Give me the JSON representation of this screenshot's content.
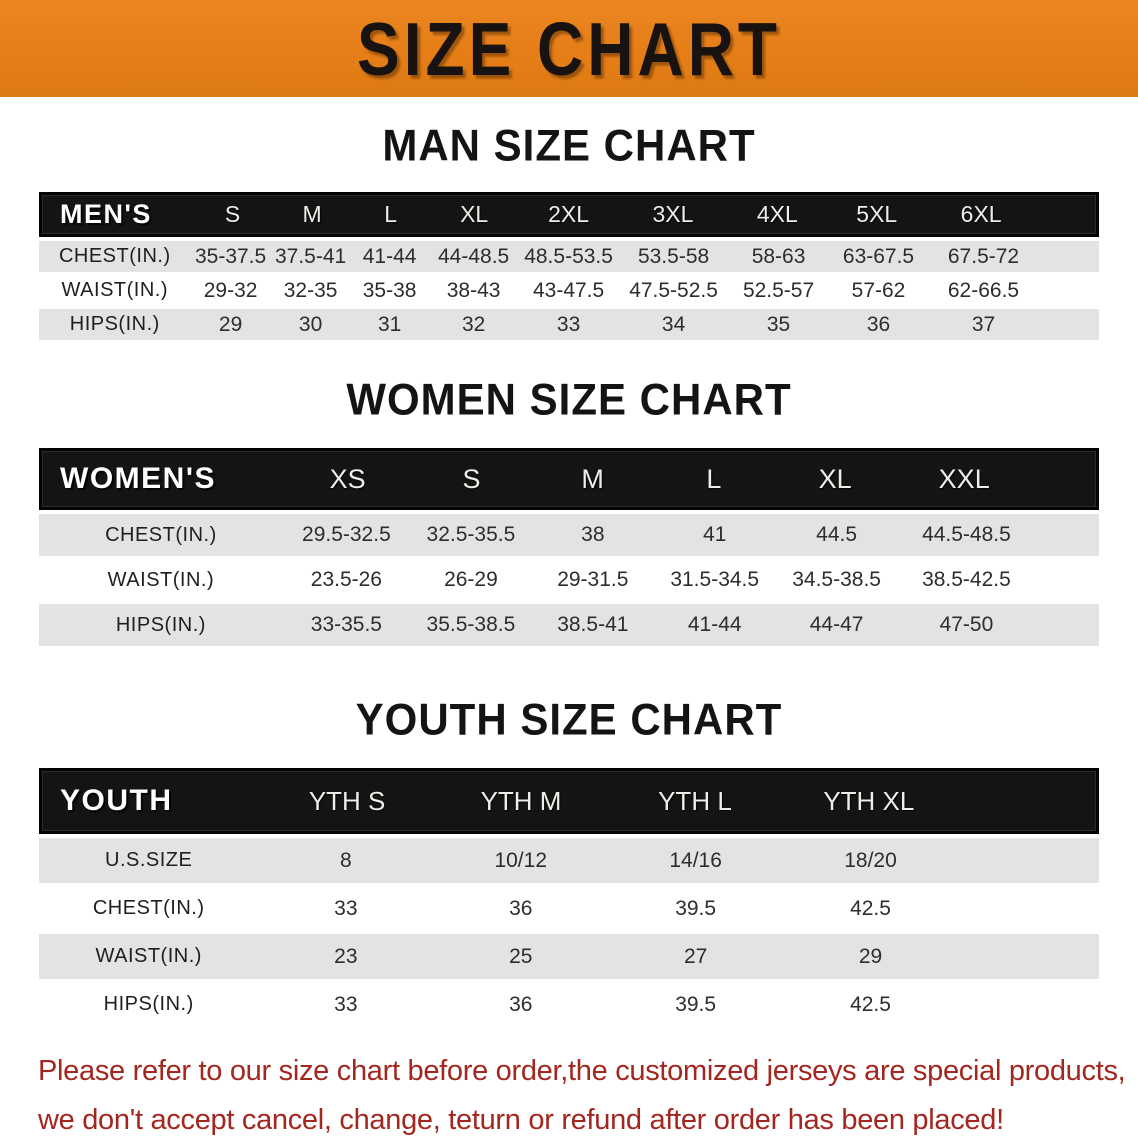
{
  "banner": {
    "title": "SIZE CHART"
  },
  "colors": {
    "banner_bg": "#e67e17",
    "header_bar_bg": "#141414",
    "row_stripe": "#e3e3e3",
    "disclaimer_red": "#a3271f"
  },
  "sections": [
    {
      "heading": "MAN SIZE CHART",
      "table": {
        "header_label": "MEN'S",
        "columns": [
          "S",
          "M",
          "L",
          "XL",
          "2XL",
          "3XL",
          "4XL",
          "5XL",
          "6XL"
        ],
        "rows": [
          {
            "label": "CHEST(IN.)",
            "values": [
              "35-37.5",
              "37.5-41",
              "41-44",
              "44-48.5",
              "48.5-53.5",
              "53.5-58",
              "58-63",
              "63-67.5",
              "67.5-72"
            ]
          },
          {
            "label": "WAIST(IN.)",
            "values": [
              "29-32",
              "32-35",
              "35-38",
              "38-43",
              "43-47.5",
              "47.5-52.5",
              "52.5-57",
              "57-62",
              "62-66.5"
            ]
          },
          {
            "label": "HIPS(IN.)",
            "values": [
              "29",
              "30",
              "31",
              "32",
              "33",
              "34",
              "35",
              "36",
              "37"
            ]
          }
        ]
      }
    },
    {
      "heading": "WOMEN SIZE CHART",
      "table": {
        "header_label": "WOMEN'S",
        "columns": [
          "XS",
          "S",
          "M",
          "L",
          "XL",
          "XXL"
        ],
        "rows": [
          {
            "label": "CHEST(IN.)",
            "values": [
              "29.5-32.5",
              "32.5-35.5",
              "38",
              "41",
              "44.5",
              "44.5-48.5"
            ]
          },
          {
            "label": "WAIST(IN.)",
            "values": [
              "23.5-26",
              "26-29",
              "29-31.5",
              "31.5-34.5",
              "34.5-38.5",
              "38.5-42.5"
            ]
          },
          {
            "label": "HIPS(IN.)",
            "values": [
              "33-35.5",
              "35.5-38.5",
              "38.5-41",
              "41-44",
              "44-47",
              "47-50"
            ]
          }
        ]
      }
    },
    {
      "heading": "YOUTH SIZE CHART",
      "table": {
        "header_label": "YOUTH",
        "columns": [
          "YTH S",
          "YTH M",
          "YTH L",
          "YTH XL"
        ],
        "rows": [
          {
            "label": "U.S.SIZE",
            "values": [
              "8",
              "10/12",
              "14/16",
              "18/20"
            ]
          },
          {
            "label": "CHEST(IN.)",
            "values": [
              "33",
              "36",
              "39.5",
              "42.5"
            ]
          },
          {
            "label": "WAIST(IN.)",
            "values": [
              "23",
              "25",
              "27",
              "29"
            ]
          },
          {
            "label": "HIPS(IN.)",
            "values": [
              "33",
              "36",
              "39.5",
              "42.5"
            ]
          }
        ]
      }
    }
  ],
  "disclaimer": {
    "line1": "Please refer to our size chart before order,the customized jerseys are special products,",
    "line2": "we don't accept cancel, change, teturn or refund after order has been placed!"
  }
}
